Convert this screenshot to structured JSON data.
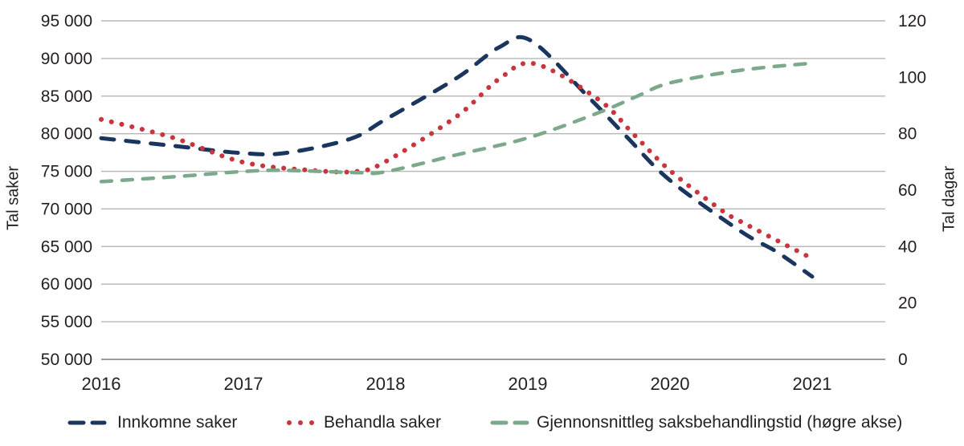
{
  "chart_data": {
    "type": "line",
    "title": "",
    "grid": true,
    "legend_position": "bottom",
    "x_axis": {
      "tick_labels": [
        "2016",
        "2017",
        "2018",
        "2019",
        "2020",
        "2021"
      ],
      "min": 2016,
      "max": 2021
    },
    "left_axis": {
      "title": "Tal saker",
      "min": 50000,
      "max": 95000,
      "tick_step": 5000,
      "tick_labels": [
        "50 000",
        "55 000",
        "60 000",
        "65 000",
        "70 000",
        "75 000",
        "80 000",
        "85 000",
        "90 000",
        "95 000"
      ]
    },
    "right_axis": {
      "title": "Tal dagar",
      "min": 0,
      "max": 120,
      "tick_step": 20,
      "tick_labels": [
        "0",
        "20",
        "40",
        "60",
        "80",
        "100",
        "120"
      ]
    },
    "series": [
      {
        "name": "Innkomne saker",
        "axis": "left",
        "color": "#1a355e",
        "line_style": "dashed",
        "points": [
          [
            2016,
            79400
          ],
          [
            2016.5,
            78400
          ],
          [
            2017,
            77400
          ],
          [
            2017.3,
            77450
          ],
          [
            2017.75,
            79300
          ],
          [
            2018,
            81900
          ],
          [
            2018.5,
            87400
          ],
          [
            2018.8,
            91500
          ],
          [
            2019.02,
            92400
          ],
          [
            2019.42,
            85000
          ],
          [
            2019.7,
            79500
          ],
          [
            2020,
            73800
          ],
          [
            2020.5,
            67000
          ],
          [
            2020.75,
            64300
          ],
          [
            2021,
            61000
          ]
        ]
      },
      {
        "name": "Behandla saker",
        "axis": "left",
        "color": "#c8353d",
        "line_style": "dotted",
        "points": [
          [
            2016,
            81900
          ],
          [
            2016.5,
            79500
          ],
          [
            2017,
            76200
          ],
          [
            2017.5,
            75100
          ],
          [
            2017.8,
            75000
          ],
          [
            2018,
            76300
          ],
          [
            2018.5,
            82300
          ],
          [
            2018.8,
            87300
          ],
          [
            2019.05,
            89300
          ],
          [
            2019.5,
            84500
          ],
          [
            2019.75,
            79800
          ],
          [
            2020,
            75100
          ],
          [
            2020.35,
            70000
          ],
          [
            2020.5,
            68300
          ],
          [
            2021,
            63400
          ]
        ]
      },
      {
        "name": "Gjennonsnittleg saksbehandlingstid (høgre akse)",
        "axis": "right",
        "color": "#7ca98b",
        "line_style": "dashed",
        "points": [
          [
            2016,
            63
          ],
          [
            2016.5,
            64.7
          ],
          [
            2017,
            66.6
          ],
          [
            2017.3,
            67.0
          ],
          [
            2017.8,
            66.2
          ],
          [
            2018,
            66.5
          ],
          [
            2018.5,
            72.5
          ],
          [
            2019,
            78.5
          ],
          [
            2019.5,
            87.5
          ],
          [
            2019.77,
            93.3
          ],
          [
            2020,
            98
          ],
          [
            2020.5,
            102.5
          ],
          [
            2021,
            105
          ]
        ]
      }
    ]
  },
  "colors": {
    "grid": "#b6b6b6",
    "axis_line": "#9c9c9c",
    "text": "#231f20"
  }
}
